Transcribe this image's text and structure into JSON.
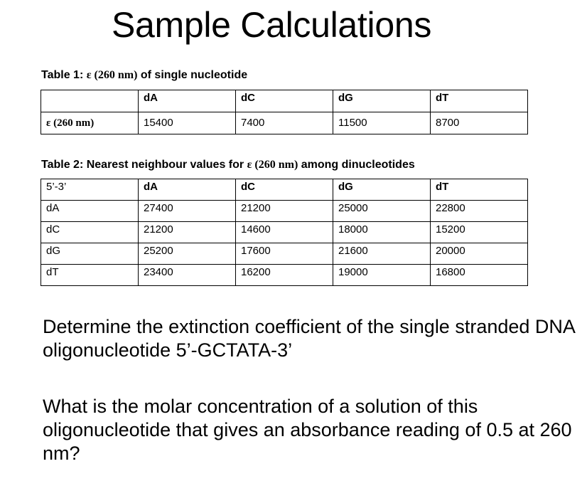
{
  "title": "Sample Calculations",
  "table1": {
    "caption_prefix": "Table 1: ",
    "caption_eps": "ε (260 nm)",
    "caption_suffix": " of single nucleotide",
    "headers": [
      "",
      "dA",
      "dC",
      "dG",
      "dT"
    ],
    "row_label": "ε (260 nm)",
    "values": [
      "15400",
      "7400",
      "11500",
      "8700"
    ]
  },
  "table2": {
    "caption_prefix": "Table 2: Nearest neighbour values for ",
    "caption_eps": "ε (260 nm)",
    "caption_suffix": " among dinucleotides",
    "corner": "5’-3’",
    "headers": [
      "dA",
      "dC",
      "dG",
      "dT"
    ],
    "rows": [
      {
        "label": "dA",
        "values": [
          "27400",
          "21200",
          "25000",
          "22800"
        ]
      },
      {
        "label": "dC",
        "values": [
          "21200",
          "14600",
          "18000",
          "15200"
        ]
      },
      {
        "label": "dG",
        "values": [
          "25200",
          "17600",
          "21600",
          "20000"
        ]
      },
      {
        "label": "dT",
        "values": [
          "23400",
          "16200",
          "19000",
          "16800"
        ]
      }
    ]
  },
  "question1": "Determine the extinction coefficient of the single stranded DNA oligonucleotide 5’-GCTATA-3’",
  "question2": "What is the molar concentration of a solution of this oligonucleotide that gives an absorbance reading of 0.5 at 260 nm?"
}
